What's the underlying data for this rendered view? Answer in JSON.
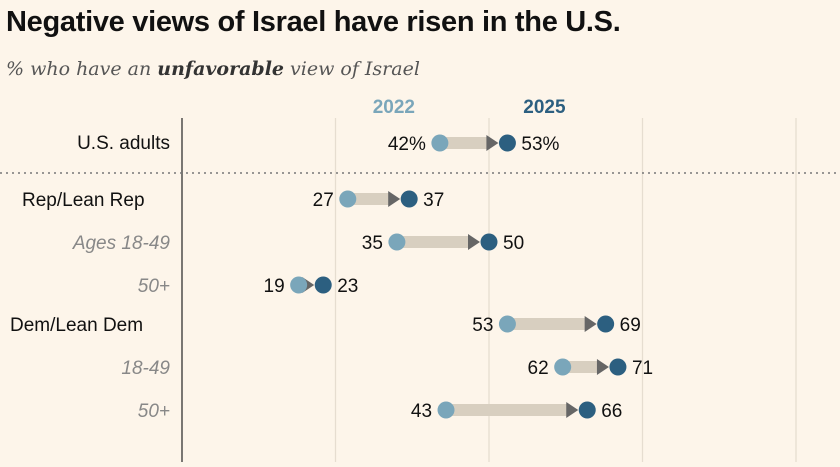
{
  "title": "Negative views of Israel have risen in the U.S.",
  "subtitle": {
    "pre": "% who have an ",
    "bold": "unfavorable",
    "post": " view of Israel"
  },
  "chart_data": {
    "type": "dot-arrow",
    "xlim": [
      0,
      100
    ],
    "gridlines": [
      25,
      50,
      75,
      100
    ],
    "series": [
      {
        "name": "2022",
        "color": "#7aa6ba"
      },
      {
        "name": "2025",
        "color": "#2c5f80"
      }
    ],
    "arrow_color": "#d8cfc0",
    "arrowhead_color": "#666666",
    "rows": [
      {
        "label": "U.S. adults",
        "style": "main",
        "v2022": 42,
        "v2025": 53,
        "suffix": "%"
      },
      {
        "label": "Rep/Lean Rep",
        "style": "group",
        "v2022": 27,
        "v2025": 37,
        "suffix": ""
      },
      {
        "label": "Ages 18-49",
        "style": "sub",
        "v2022": 35,
        "v2025": 50,
        "suffix": ""
      },
      {
        "label": "50+",
        "style": "sub",
        "v2022": 19,
        "v2025": 23,
        "suffix": ""
      },
      {
        "label": "Dem/Lean Dem",
        "style": "group",
        "v2022": 53,
        "v2025": 69,
        "suffix": ""
      },
      {
        "label": "18-49",
        "style": "sub",
        "v2022": 62,
        "v2025": 71,
        "suffix": ""
      },
      {
        "label": "50+",
        "style": "sub",
        "v2022": 43,
        "v2025": 66,
        "suffix": ""
      }
    ]
  }
}
